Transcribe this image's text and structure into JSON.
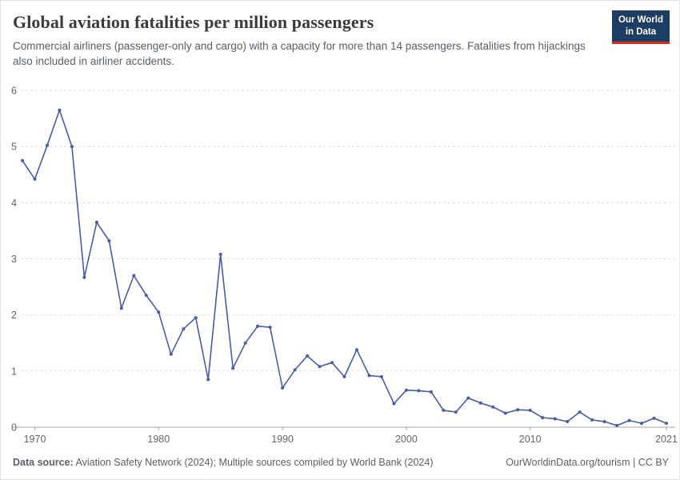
{
  "header": {
    "title": "Global aviation fatalities per million passengers",
    "subtitle": "Commercial airliners (passenger-only and cargo) with a capacity for more than 14 passengers. Fatalities from hijackings also included in airliner accidents.",
    "logo": {
      "line1": "Our World",
      "line2": "in Data",
      "bg_color": "#1d3d63",
      "accent_color": "#e0271c"
    }
  },
  "chart_data": {
    "type": "line",
    "title": "Global aviation fatalities per million passengers",
    "xlabel": "",
    "ylabel": "",
    "color": "#4a5d9e",
    "grid": true,
    "legend": "none",
    "ylim": [
      0,
      6
    ],
    "yticks": [
      0,
      1,
      2,
      3,
      4,
      5,
      6
    ],
    "xticks": [
      1970,
      1980,
      1990,
      2000,
      2010,
      2021
    ],
    "x": [
      1969,
      1970,
      1971,
      1972,
      1973,
      1974,
      1975,
      1976,
      1977,
      1978,
      1979,
      1980,
      1981,
      1982,
      1983,
      1984,
      1985,
      1986,
      1987,
      1988,
      1989,
      1990,
      1991,
      1992,
      1993,
      1994,
      1995,
      1996,
      1997,
      1998,
      1999,
      2000,
      2001,
      2002,
      2003,
      2004,
      2005,
      2006,
      2007,
      2008,
      2009,
      2010,
      2011,
      2012,
      2013,
      2014,
      2015,
      2016,
      2017,
      2018,
      2019,
      2020,
      2021
    ],
    "values": [
      4.75,
      4.42,
      5.02,
      5.65,
      5.0,
      2.67,
      3.65,
      3.32,
      2.12,
      2.7,
      2.35,
      2.05,
      1.3,
      1.75,
      1.95,
      0.85,
      3.08,
      1.05,
      1.5,
      1.8,
      1.78,
      0.7,
      1.02,
      1.27,
      1.08,
      1.15,
      0.9,
      1.38,
      0.92,
      0.9,
      0.42,
      0.66,
      0.65,
      0.63,
      0.3,
      0.27,
      0.52,
      0.43,
      0.36,
      0.25,
      0.31,
      0.3,
      0.17,
      0.15,
      0.1,
      0.27,
      0.13,
      0.1,
      0.03,
      0.12,
      0.07,
      0.16,
      0.07
    ]
  },
  "footer": {
    "source_label": "Data source:",
    "source_text": " Aviation Safety Network (2024); Multiple sources compiled by World Bank (2024)",
    "url_text": "OurWorldinData.org/tourism",
    "license_text": " | CC BY"
  }
}
